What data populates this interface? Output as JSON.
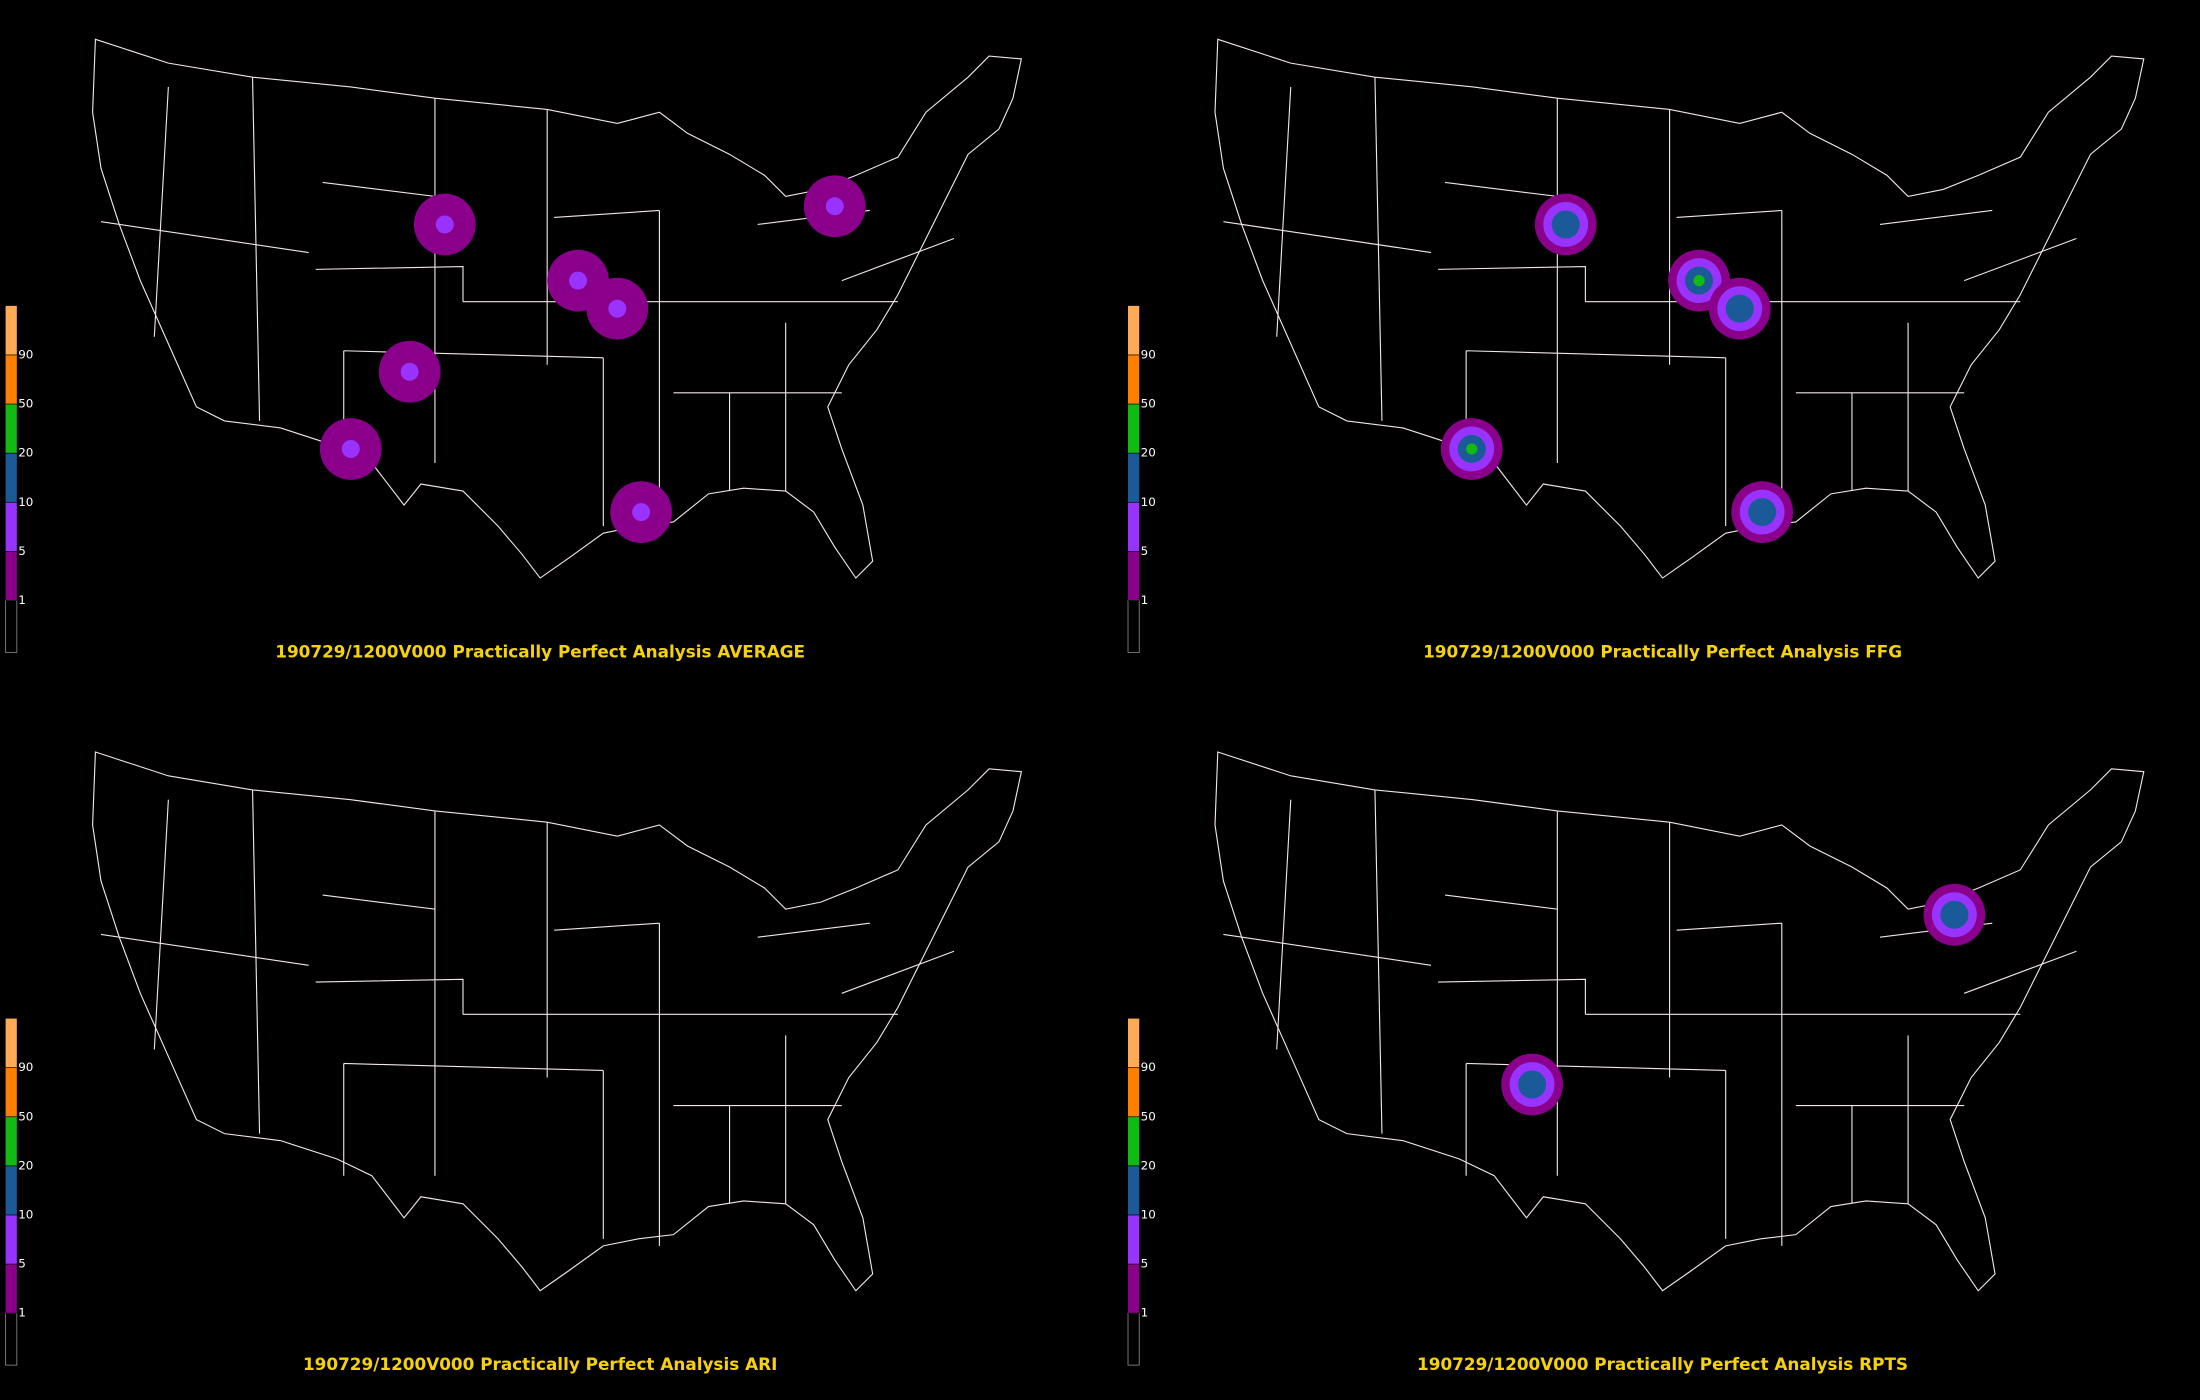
{
  "panels": [
    {
      "title": "190729/1200V000 Practically Perfect Analysis AVERAGE"
    },
    {
      "title": "190729/1200V000 Practically Perfect Analysis FFG"
    },
    {
      "title": "190729/1200V000 Practically Perfect Analysis ARI"
    },
    {
      "title": "190729/1200V000 Practically Perfect Analysis RPTS"
    }
  ],
  "colorbar": {
    "levels": [
      1,
      5,
      10,
      20,
      50,
      90
    ],
    "colors": [
      "#000000",
      "#8b008b",
      "#9933ff",
      "#1a5a99",
      "#11bb11",
      "#ff7f00",
      "#ffaa55"
    ]
  }
}
